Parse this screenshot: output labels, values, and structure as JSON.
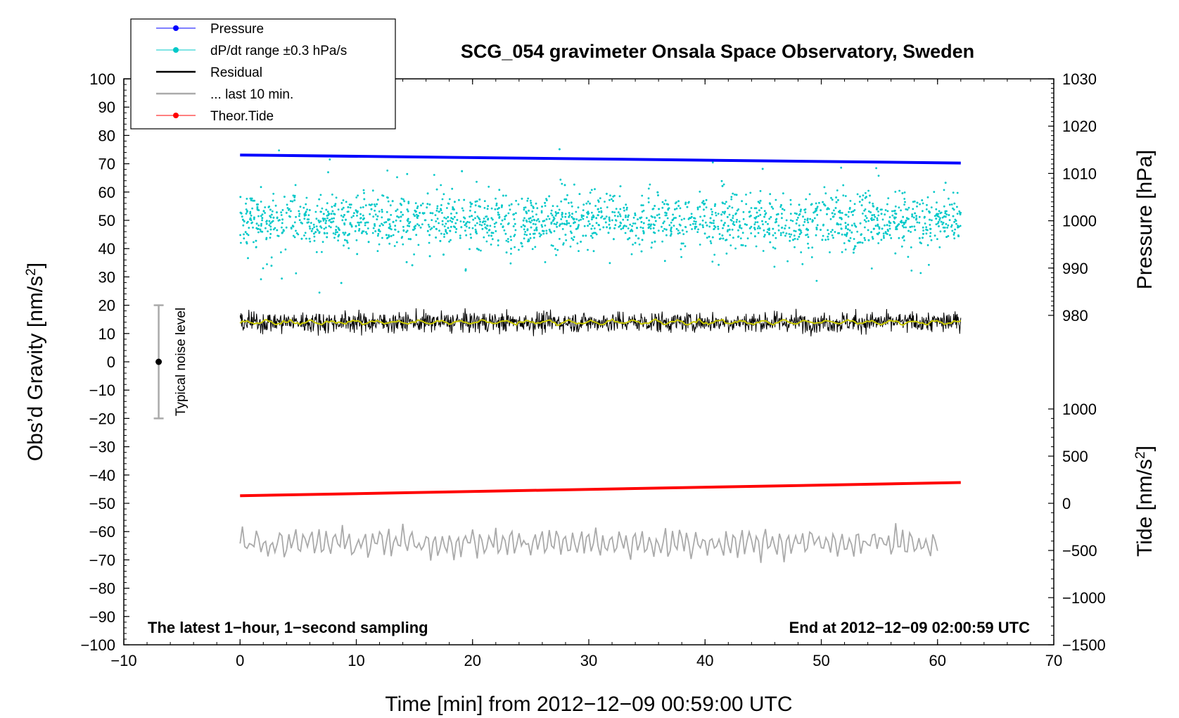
{
  "chart_data": {
    "type": "line",
    "title": "SCG_054 gravimeter Onsala Space Observatory, Sweden",
    "xlabel": "Time [min] from 2012−12−09 00:59:00 UTC",
    "ylabel_left": "Obs’d Gravity [nm/s",
    "ylabel_left_sup": "2",
    "ylabel_left_end": "]",
    "ylabel_right_pressure": "Pressure [hPa]",
    "ylabel_right_tide": "Tide [nm/s",
    "ylabel_right_tide_sup": "2",
    "ylabel_right_tide_end": "]",
    "xlim": [
      -10,
      70
    ],
    "ylim_left": [
      -100,
      100
    ],
    "pressure_range": [
      980,
      1030
    ],
    "tide_range": [
      -1500,
      1000
    ],
    "x_ticks": [
      "−10",
      "0",
      "10",
      "20",
      "30",
      "40",
      "50",
      "60",
      "70"
    ],
    "x_tick_values": [
      -10,
      0,
      10,
      20,
      30,
      40,
      50,
      60,
      70
    ],
    "y_left_ticks": [
      "100",
      "90",
      "80",
      "70",
      "60",
      "50",
      "40",
      "30",
      "20",
      "10",
      "0",
      "−10",
      "−20",
      "−30",
      "−40",
      "−50",
      "−60",
      "−70",
      "−80",
      "−90",
      "−100"
    ],
    "y_left_tick_values": [
      100,
      90,
      80,
      70,
      60,
      50,
      40,
      30,
      20,
      10,
      0,
      -10,
      -20,
      -30,
      -40,
      -50,
      -60,
      -70,
      -80,
      -90,
      -100
    ],
    "pressure_ticks": [
      "1030",
      "1020",
      "1010",
      "1000",
      "990",
      "980"
    ],
    "pressure_tick_values": [
      1030,
      1020,
      1010,
      1000,
      990,
      980
    ],
    "tide_ticks": [
      "1000",
      "500",
      "0",
      "−500",
      "−1000",
      "−1500"
    ],
    "tide_tick_values": [
      1000,
      500,
      0,
      -500,
      -1000,
      -1500
    ],
    "legend": [
      {
        "label": "Pressure",
        "color": "#0000ff",
        "marker": true
      },
      {
        "label": "dP/dt range ±0.3 hPa/s",
        "color": "#00c8c8",
        "marker": true
      },
      {
        "label": "Residual",
        "color": "#000000",
        "marker": false
      },
      {
        "label": "... last 10 min.",
        "color": "#aaaaaa",
        "marker": false
      },
      {
        "label": "Theor.Tide",
        "color": "#ff0000",
        "marker": true
      }
    ],
    "series": [
      {
        "name": "Pressure",
        "color": "#0000ff",
        "x": [
          0,
          62
        ],
        "y_hPa": [
          1013.9,
          1012.2
        ]
      },
      {
        "name": "dP/dt range ±0.3 hPa/s",
        "color": "#00c8c8",
        "x_range": [
          0,
          62
        ],
        "center": 50,
        "spread": 22
      },
      {
        "name": "Residual",
        "color": "#000000",
        "x_range": [
          0,
          62
        ],
        "mean": 14,
        "spread": 9
      },
      {
        "name": "Residual smoothed",
        "color": "#c8c800",
        "x_range": [
          0,
          62
        ],
        "mean": 14
      },
      {
        "name": "... last 10 min.",
        "color": "#aaaaaa",
        "x_range": [
          0,
          60
        ],
        "mean": -64,
        "spread": 8
      },
      {
        "name": "Theor.Tide",
        "color": "#ff0000",
        "x": [
          0,
          62
        ],
        "y_tide": [
          80,
          220
        ]
      }
    ],
    "noise_marker": {
      "x": -7,
      "center": 0,
      "low": -20,
      "high": 20,
      "label": "Typical noise level"
    },
    "note_left": "The latest 1−hour, 1−second sampling",
    "note_right": "End at 2012−12−09 02:00:59 UTC"
  }
}
